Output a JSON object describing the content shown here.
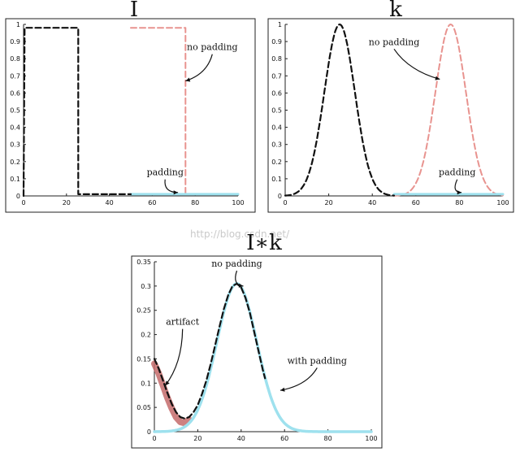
{
  "watermark": "http://blog.csdn.net/",
  "colors": {
    "black_dash": "#111111",
    "pink_dash": "#e8938f",
    "light_blue": "#9ee1ee",
    "artifact_red": "#c46b6b",
    "frame": "#222222"
  },
  "chart_data": [
    {
      "id": "I",
      "type": "line",
      "title": "I",
      "xlim": [
        0,
        100
      ],
      "ylim": [
        0,
        1
      ],
      "xticks": [
        "0",
        "20",
        "40",
        "60",
        "80",
        "100"
      ],
      "yticks": [
        "0",
        "0.1",
        "0.2",
        "0.3",
        "0.4",
        "0.5",
        "0.6",
        "0.7",
        "0.8",
        "0.9",
        "1"
      ],
      "series": [
        {
          "style": "black-dashed",
          "x": [
            0,
            0.5,
            25.5,
            25.5,
            50
          ],
          "y": [
            0,
            0.98,
            0.98,
            0.01,
            0.01
          ]
        },
        {
          "style": "pink-dashed",
          "x": [
            50,
            75.5,
            75.5,
            100
          ],
          "y": [
            0.98,
            0.98,
            0.01,
            0.01
          ]
        },
        {
          "style": "blue-solid",
          "x": [
            50,
            100
          ],
          "y": [
            0.01,
            0.01
          ]
        }
      ],
      "annotations": [
        {
          "text": "no padding",
          "x": 88,
          "y": 0.85,
          "arrow_to": [
            75.5,
            0.67
          ]
        },
        {
          "text": "padding",
          "x": 66,
          "y": 0.12,
          "arrow_to": [
            72,
            0.02
          ]
        }
      ]
    },
    {
      "id": "k",
      "type": "line",
      "title": "k",
      "xlim": [
        0,
        100
      ],
      "ylim": [
        0,
        1
      ],
      "xticks": [
        "0",
        "20",
        "40",
        "60",
        "80",
        "100"
      ],
      "yticks": [
        "0",
        "0.1",
        "0.2",
        "0.3",
        "0.4",
        "0.5",
        "0.6",
        "0.7",
        "0.8",
        "0.9",
        "1"
      ],
      "series": [
        {
          "style": "black-dashed",
          "gaussian": {
            "mu": 25,
            "sigma": 7,
            "amp": 1,
            "from": 0,
            "to": 50
          }
        },
        {
          "style": "pink-dashed",
          "gaussian": {
            "mu": 76,
            "sigma": 7,
            "amp": 1,
            "from": 50,
            "to": 100
          }
        },
        {
          "style": "blue-solid",
          "x": [
            50,
            100
          ],
          "y": [
            0.01,
            0.01
          ]
        }
      ],
      "annotations": [
        {
          "text": "no padding",
          "x": 50,
          "y": 0.88,
          "arrow_to": [
            71,
            0.68
          ]
        },
        {
          "text": "padding",
          "x": 79,
          "y": 0.12,
          "arrow_to": [
            81,
            0.02
          ]
        }
      ]
    },
    {
      "id": "conv",
      "type": "line",
      "title": "I∗k",
      "xlim": [
        0,
        100
      ],
      "ylim": [
        0,
        0.35
      ],
      "xticks": [
        "0",
        "20",
        "40",
        "60",
        "80",
        "100"
      ],
      "yticks": [
        "0",
        "0.05",
        "0.1",
        "0.15",
        "0.2",
        "0.25",
        "0.3",
        "0.35"
      ],
      "series": [
        {
          "style": "red-thick",
          "x": [
            0,
            2,
            4,
            6,
            8,
            10,
            12,
            14,
            16
          ],
          "y": [
            0.14,
            0.12,
            0.095,
            0.07,
            0.048,
            0.03,
            0.02,
            0.018,
            0.025
          ]
        },
        {
          "style": "blue-solid-thick",
          "gaussian": {
            "mu": 38,
            "sigma": 9.2,
            "amp": 0.305,
            "from": 0,
            "to": 100
          }
        },
        {
          "style": "black-dashed",
          "x": [
            0,
            2,
            4,
            6,
            8,
            10,
            12,
            14,
            16,
            18,
            20,
            22,
            24,
            26,
            28,
            30,
            32,
            34,
            36,
            38,
            40,
            42,
            44,
            46,
            48,
            50,
            51
          ],
          "y": [
            0.15,
            0.13,
            0.105,
            0.08,
            0.057,
            0.04,
            0.03,
            0.027,
            0.03,
            0.04,
            0.055,
            0.078,
            0.106,
            0.14,
            0.178,
            0.216,
            0.252,
            0.281,
            0.3,
            0.305,
            0.297,
            0.276,
            0.245,
            0.206,
            0.166,
            0.127,
            0.11
          ]
        }
      ],
      "annotations": [
        {
          "text": "no padding",
          "x": 38,
          "y": 0.34,
          "arrow_to": [
            41,
            0.3
          ]
        },
        {
          "text": "artifact",
          "x": 13,
          "y": 0.22,
          "arrow_to": [
            5,
            0.095
          ]
        },
        {
          "text": "with padding",
          "x": 75,
          "y": 0.14,
          "arrow_to": [
            58,
            0.085
          ]
        }
      ]
    }
  ]
}
